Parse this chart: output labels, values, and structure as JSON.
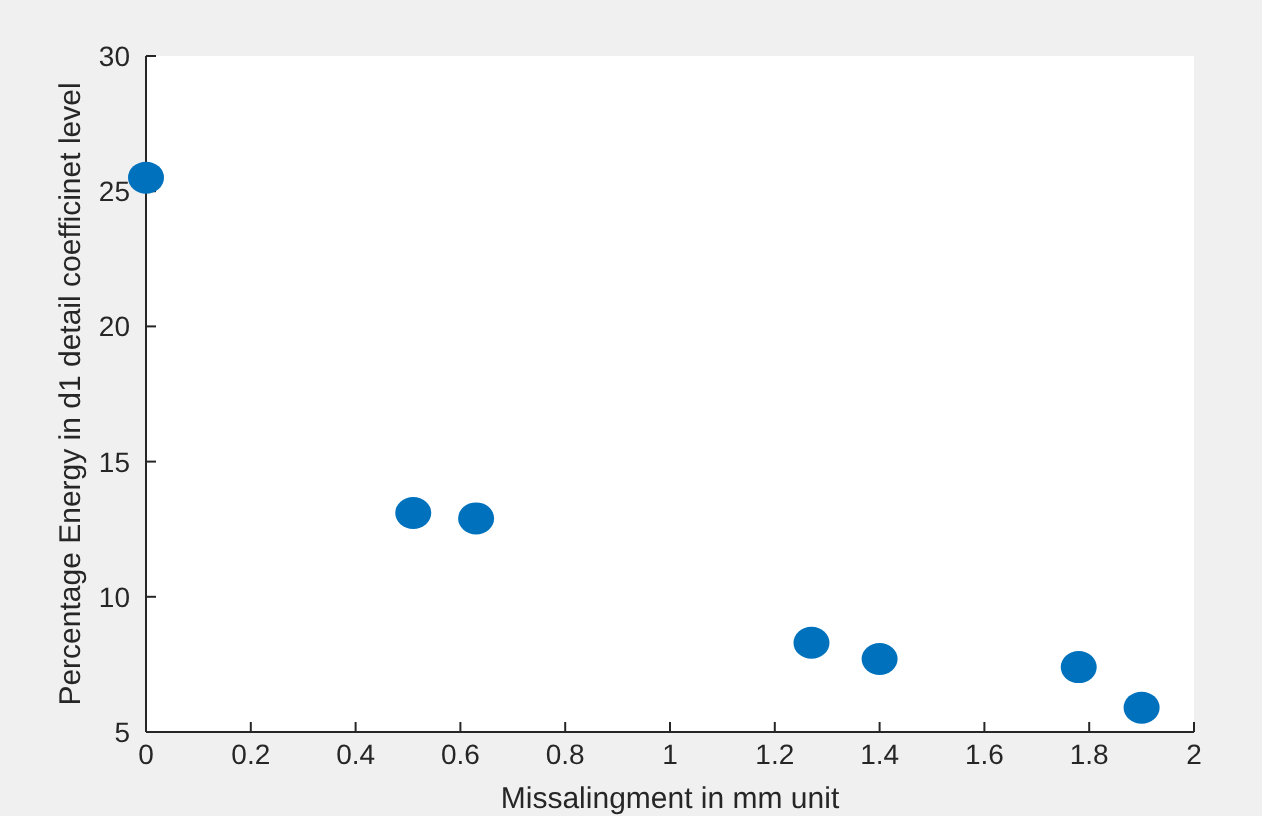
{
  "chart_data": {
    "type": "scatter",
    "xlabel": "Missalingment in mm unit",
    "ylabel": "Percentage Energy in d1 detail coefficinet level",
    "x": [
      0,
      0.51,
      0.63,
      1.27,
      1.4,
      1.78,
      1.9
    ],
    "series": [
      {
        "color": "#0072bd",
        "values": [
          25.5,
          13.1,
          12.9,
          8.3,
          7.7,
          7.4,
          5.9
        ]
      }
    ],
    "xlim": [
      0,
      2
    ],
    "xticks": [
      0,
      0.2,
      0.4,
      0.6,
      0.8,
      1,
      1.2,
      1.4,
      1.6,
      1.8,
      2
    ],
    "ylim": [
      5,
      30
    ],
    "yticks": [
      5,
      10,
      15,
      20,
      25,
      30
    ],
    "marker": "circle"
  }
}
